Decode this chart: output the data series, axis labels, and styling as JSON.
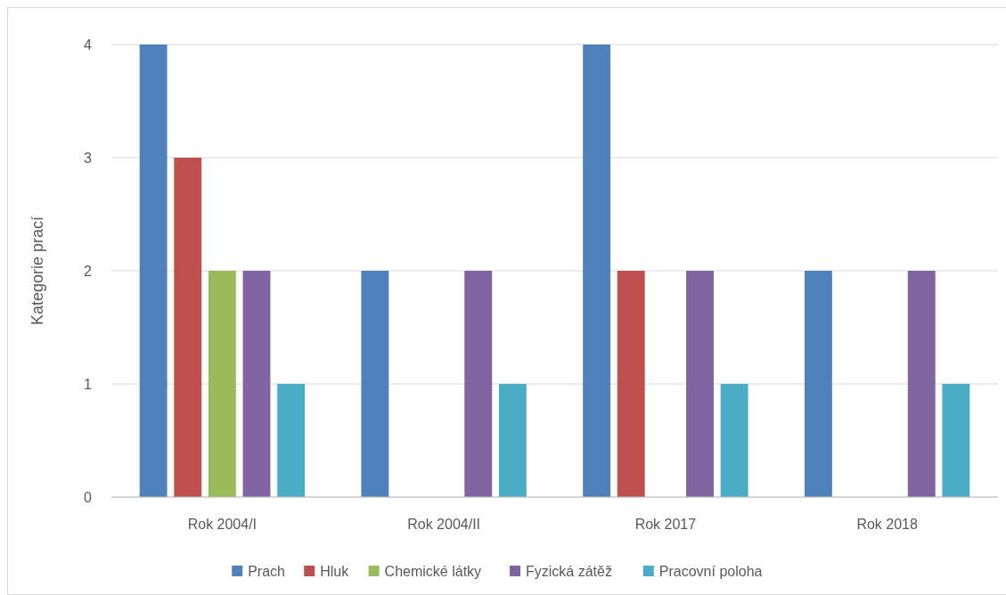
{
  "chart_data": {
    "type": "bar",
    "ylabel": "Kategorie prací",
    "categories": [
      "Rok 2004/I",
      "Rok 2004/II",
      "Rok 2017",
      "Rok 2018"
    ],
    "series": [
      {
        "name": "Prach",
        "color": "#4f81bd",
        "values": [
          4,
          2,
          4,
          2
        ]
      },
      {
        "name": "Hluk",
        "color": "#c0504d",
        "values": [
          3,
          0,
          2,
          0
        ]
      },
      {
        "name": "Chemické látky",
        "color": "#9bbb59",
        "values": [
          2,
          0,
          0,
          0
        ]
      },
      {
        "name": "Fyzická zátěž",
        "color": "#8064a2",
        "values": [
          2,
          2,
          2,
          2
        ]
      },
      {
        "name": "Pracovní poloha",
        "color": "#4bacc6",
        "values": [
          1,
          1,
          1,
          1
        ]
      }
    ],
    "ylim": [
      0,
      4
    ],
    "yticks": [
      0,
      1,
      2,
      3,
      4
    ],
    "grid": "y",
    "legend": "bottom"
  }
}
